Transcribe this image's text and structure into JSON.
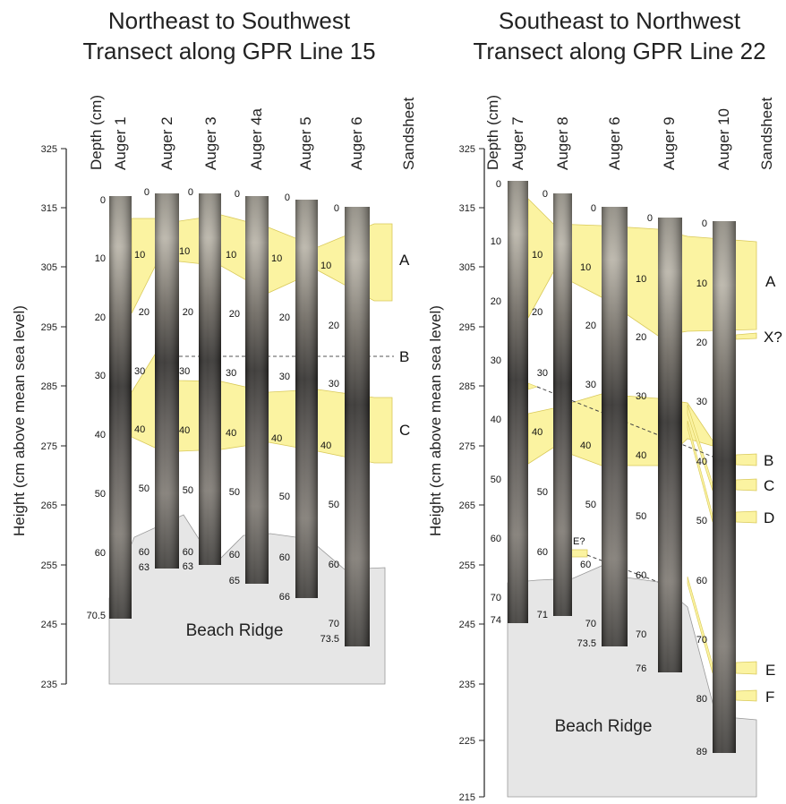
{
  "left": {
    "title_line1": "Northeast to Southwest",
    "title_line2": "Transect along GPR Line 15",
    "columns": [
      "Depth (cm)",
      "Auger 1",
      "Auger 2",
      "Auger 3",
      "Auger 4a",
      "Auger 5",
      "Auger 6",
      "Sandsheet"
    ],
    "y_axis": {
      "label": "Height (cm above mean sea level)",
      "ticks": [
        325,
        315,
        305,
        295,
        285,
        275,
        265,
        255,
        245,
        235
      ]
    },
    "cores": [
      {
        "name": "Auger 1",
        "depth_labels": [
          "0",
          "10",
          "20",
          "30",
          "40",
          "50",
          "60"
        ],
        "bottom_label": "70.5"
      },
      {
        "name": "Auger 2",
        "depth_labels": [
          "0",
          "10",
          "20",
          "30",
          "40",
          "50",
          "60"
        ],
        "bottom_label": "63"
      },
      {
        "name": "Auger 3",
        "depth_labels": [
          "0",
          "10",
          "20",
          "30",
          "40",
          "50",
          "60"
        ],
        "bottom_label": "63"
      },
      {
        "name": "Auger 4a",
        "depth_labels": [
          "0",
          "10",
          "20",
          "30",
          "40",
          "50",
          "60"
        ],
        "bottom_label": "65"
      },
      {
        "name": "Auger 5",
        "depth_labels": [
          "0",
          "10",
          "20",
          "30",
          "40",
          "50",
          "60"
        ],
        "bottom_label": "66"
      },
      {
        "name": "Auger 6",
        "depth_labels": [
          "0",
          "10",
          "20",
          "30",
          "40",
          "50",
          "60",
          "70"
        ],
        "bottom_label": "73.5"
      }
    ],
    "units": [
      "A",
      "B",
      "C"
    ],
    "ridge_label": "Beach Ridge"
  },
  "right": {
    "title_line1": "Southeast to Northwest",
    "title_line2": "Transect along GPR Line 22",
    "columns": [
      "Depth (cm)",
      "Auger 7",
      "Auger 8",
      "Auger 6",
      "Auger 9",
      "Auger 10",
      "Sandsheet"
    ],
    "y_axis": {
      "label": "Height (cm above mean sea level)",
      "ticks": [
        325,
        315,
        305,
        295,
        285,
        275,
        265,
        255,
        245,
        235,
        225,
        215
      ]
    },
    "cores": [
      {
        "name": "Auger 7",
        "depth_labels": [
          "0",
          "10",
          "20",
          "30",
          "40",
          "50",
          "60",
          "70"
        ],
        "bottom_label": "74"
      },
      {
        "name": "Auger 8",
        "depth_labels": [
          "0",
          "10",
          "20",
          "30",
          "40",
          "50",
          "60"
        ],
        "bottom_label": "71"
      },
      {
        "name": "Auger 6",
        "depth_labels": [
          "0",
          "10",
          "20",
          "30",
          "40",
          "50",
          "60",
          "70"
        ],
        "bottom_label": "73.5"
      },
      {
        "name": "Auger 9",
        "depth_labels": [
          "0",
          "10",
          "20",
          "30",
          "40",
          "50",
          "60",
          "70"
        ],
        "bottom_label": "76"
      },
      {
        "name": "Auger 10",
        "depth_labels": [
          "0",
          "10",
          "20",
          "30",
          "40",
          "50",
          "60",
          "70",
          "80"
        ],
        "bottom_label": "89"
      }
    ],
    "units": [
      "A",
      "X?",
      "B",
      "C",
      "D",
      "E",
      "F"
    ],
    "e_query": "E?",
    "ridge_label": "Beach Ridge"
  },
  "colors": {
    "sand": "#fbf3a1",
    "sand_edge": "#d9c95a",
    "ridge": "#e6e6e6",
    "core_dark": "#3e3c3a",
    "core_light": "#9a958c"
  }
}
